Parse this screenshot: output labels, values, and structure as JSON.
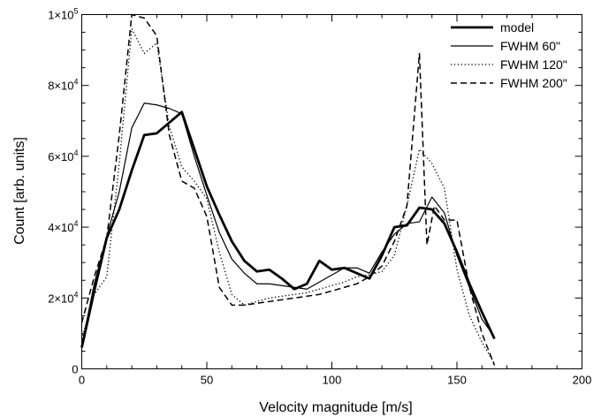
{
  "chart_data": {
    "type": "line",
    "xlabel": "Velocity magnitude [m/s]",
    "ylabel": "Count [arb. units]",
    "xlim": [
      0,
      200
    ],
    "ylim": [
      0,
      100000
    ],
    "grid": false,
    "legend_position": "top-right",
    "x_ticks": [
      {
        "value": 0,
        "label": "0"
      },
      {
        "value": 50,
        "label": "50"
      },
      {
        "value": 100,
        "label": "100"
      },
      {
        "value": 150,
        "label": "150"
      },
      {
        "value": 200,
        "label": "200"
      }
    ],
    "y_ticks": [
      {
        "value": 0,
        "mantissa": "0",
        "exp": ""
      },
      {
        "value": 20000,
        "mantissa": "2×10",
        "exp": "4"
      },
      {
        "value": 40000,
        "mantissa": "4×10",
        "exp": "4"
      },
      {
        "value": 60000,
        "mantissa": "6×10",
        "exp": "4"
      },
      {
        "value": 80000,
        "mantissa": "8×10",
        "exp": "4"
      },
      {
        "value": 100000,
        "mantissa": "1×10",
        "exp": "5"
      }
    ],
    "series": [
      {
        "name": "model",
        "style": "thick",
        "color": "#000000",
        "points": [
          [
            0,
            6000
          ],
          [
            5,
            22000
          ],
          [
            10,
            37000
          ],
          [
            15,
            45000
          ],
          [
            20,
            56000
          ],
          [
            25,
            66000
          ],
          [
            30,
            66500
          ],
          [
            35,
            69500
          ],
          [
            40,
            72500
          ],
          [
            45,
            62000
          ],
          [
            50,
            51500
          ],
          [
            55,
            43500
          ],
          [
            60,
            36000
          ],
          [
            65,
            30500
          ],
          [
            70,
            27500
          ],
          [
            75,
            28000
          ],
          [
            80,
            25500
          ],
          [
            85,
            22500
          ],
          [
            90,
            24000
          ],
          [
            95,
            30500
          ],
          [
            100,
            28000
          ],
          [
            105,
            28500
          ],
          [
            110,
            27000
          ],
          [
            115,
            25500
          ],
          [
            120,
            32000
          ],
          [
            125,
            40000
          ],
          [
            130,
            40500
          ],
          [
            135,
            45500
          ],
          [
            140,
            45000
          ],
          [
            145,
            41000
          ],
          [
            150,
            33000
          ],
          [
            155,
            24000
          ],
          [
            160,
            16000
          ],
          [
            165,
            8500
          ]
        ]
      },
      {
        "name": "FWHM 60\"",
        "style": "thin",
        "color": "#000000",
        "points": [
          [
            0,
            6500
          ],
          [
            5,
            24000
          ],
          [
            10,
            37500
          ],
          [
            15,
            50000
          ],
          [
            20,
            68000
          ],
          [
            25,
            75000
          ],
          [
            30,
            74500
          ],
          [
            35,
            73500
          ],
          [
            40,
            72000
          ],
          [
            45,
            60000
          ],
          [
            50,
            49000
          ],
          [
            55,
            38500
          ],
          [
            60,
            31000
          ],
          [
            65,
            27000
          ],
          [
            70,
            24000
          ],
          [
            75,
            24000
          ],
          [
            80,
            23500
          ],
          [
            85,
            23000
          ],
          [
            90,
            22500
          ],
          [
            95,
            24500
          ],
          [
            100,
            26500
          ],
          [
            105,
            28500
          ],
          [
            110,
            28500
          ],
          [
            115,
            27000
          ],
          [
            120,
            33000
          ],
          [
            125,
            38000
          ],
          [
            130,
            41000
          ],
          [
            135,
            41500
          ],
          [
            140,
            48500
          ],
          [
            145,
            44000
          ],
          [
            150,
            32000
          ],
          [
            155,
            23000
          ],
          [
            160,
            14000
          ],
          [
            165,
            9000
          ]
        ]
      },
      {
        "name": "FWHM 120\"",
        "style": "dotted",
        "color": "#000000",
        "points": [
          [
            0,
            8500
          ],
          [
            5,
            21000
          ],
          [
            10,
            26000
          ],
          [
            15,
            58000
          ],
          [
            20,
            96000
          ],
          [
            25,
            89000
          ],
          [
            30,
            92000
          ],
          [
            35,
            68500
          ],
          [
            40,
            57000
          ],
          [
            45,
            53000
          ],
          [
            50,
            48000
          ],
          [
            55,
            33000
          ],
          [
            60,
            21000
          ],
          [
            65,
            18000
          ],
          [
            70,
            19000
          ],
          [
            75,
            20000
          ],
          [
            80,
            20500
          ],
          [
            85,
            21000
          ],
          [
            90,
            21500
          ],
          [
            95,
            22500
          ],
          [
            100,
            23500
          ],
          [
            105,
            24500
          ],
          [
            110,
            26000
          ],
          [
            115,
            26500
          ],
          [
            120,
            27500
          ],
          [
            125,
            32000
          ],
          [
            130,
            46000
          ],
          [
            135,
            62000
          ],
          [
            140,
            58000
          ],
          [
            145,
            51000
          ],
          [
            150,
            28000
          ],
          [
            155,
            15000
          ],
          [
            160,
            7500
          ],
          [
            165,
            1500
          ]
        ]
      },
      {
        "name": "FWHM 200\"",
        "style": "dashed",
        "color": "#000000",
        "points": [
          [
            0,
            13000
          ],
          [
            5,
            26000
          ],
          [
            10,
            37000
          ],
          [
            15,
            66000
          ],
          [
            20,
            100000
          ],
          [
            25,
            99000
          ],
          [
            30,
            94000
          ],
          [
            35,
            66000
          ],
          [
            40,
            53000
          ],
          [
            45,
            51000
          ],
          [
            50,
            43000
          ],
          [
            55,
            23000
          ],
          [
            60,
            18000
          ],
          [
            65,
            18000
          ],
          [
            70,
            18500
          ],
          [
            75,
            19000
          ],
          [
            80,
            19500
          ],
          [
            85,
            20000
          ],
          [
            90,
            20500
          ],
          [
            95,
            21000
          ],
          [
            100,
            22000
          ],
          [
            105,
            23000
          ],
          [
            110,
            24000
          ],
          [
            115,
            26000
          ],
          [
            120,
            29000
          ],
          [
            125,
            36000
          ],
          [
            130,
            46000
          ],
          [
            135,
            89000
          ],
          [
            138,
            35000
          ],
          [
            141,
            46000
          ],
          [
            145,
            42000
          ],
          [
            150,
            42000
          ],
          [
            155,
            23000
          ],
          [
            160,
            10000
          ],
          [
            165,
            1000
          ]
        ]
      }
    ]
  }
}
